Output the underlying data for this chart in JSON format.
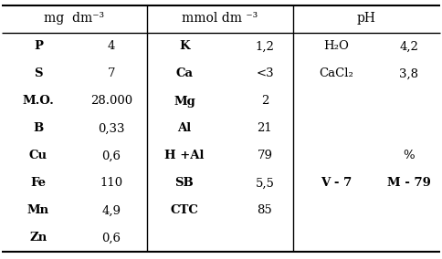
{
  "col1_header": "mg  dm⁻³",
  "col2_header": "mmol dm ⁻³",
  "col3_header": "pH",
  "col1_rows": [
    [
      "P",
      "4"
    ],
    [
      "S",
      "7"
    ],
    [
      "M.O.",
      "28.000"
    ],
    [
      "B",
      "0,33"
    ],
    [
      "Cu",
      "0,6"
    ],
    [
      "Fe",
      "110"
    ],
    [
      "Mn",
      "4,9"
    ],
    [
      "Zn",
      "0,6"
    ]
  ],
  "col2_rows": [
    [
      "K",
      "1,2"
    ],
    [
      "Ca",
      "<3"
    ],
    [
      "Mg",
      "2"
    ],
    [
      "Al",
      "21"
    ],
    [
      "H +Al",
      "79"
    ],
    [
      "SB",
      "5,5"
    ],
    [
      "CTC",
      "85"
    ]
  ],
  "col3_rows_data": [
    [
      0,
      "H₂O",
      "4,2",
      false,
      false
    ],
    [
      1,
      "CaCl₂",
      "3,8",
      false,
      false
    ],
    [
      4,
      "",
      "%",
      false,
      false
    ],
    [
      5,
      "V - 7",
      "M - 79",
      true,
      true
    ]
  ],
  "bg_color": "#ffffff",
  "text_color": "#000000",
  "bold_col1": [
    "P",
    "S",
    "M.O.",
    "B",
    "Cu",
    "Fe",
    "Mn",
    "Zn"
  ],
  "bold_col2": [
    "K",
    "Ca",
    "Mg",
    "Al",
    "H +Al",
    "SB",
    "CTC"
  ]
}
